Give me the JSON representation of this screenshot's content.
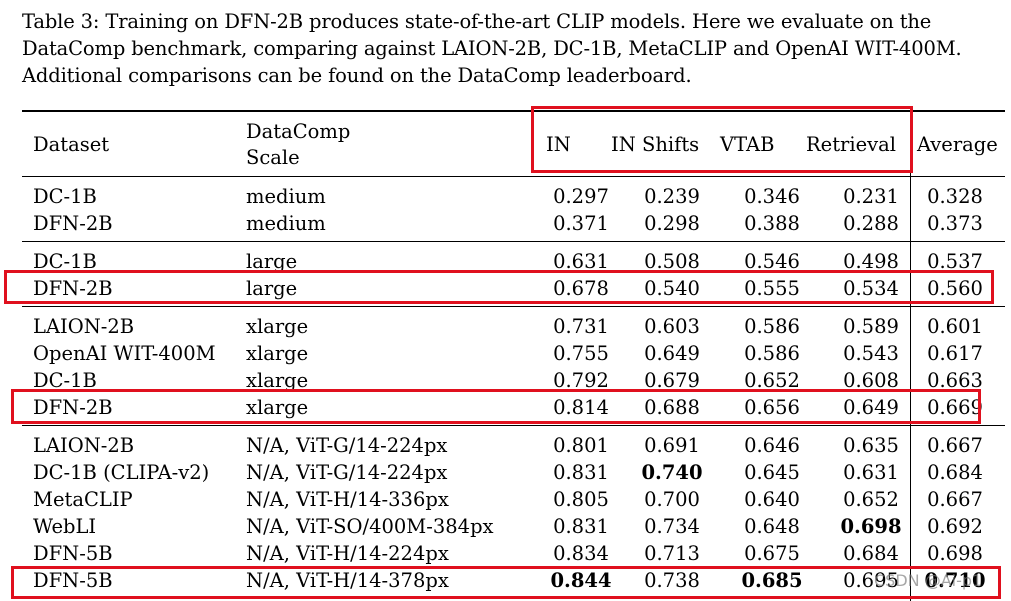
{
  "caption": "Table 3: Training on DFN-2B produces state-of-the-art CLIP models. Here we evaluate on the DataComp benchmark, comparing against LAION-2B, DC-1B, MetaCLIP and OpenAI WIT-400M. Additional comparisons can be found on the DataComp leaderboard.",
  "headers": {
    "dataset": "Dataset",
    "scale_line1": "DataComp",
    "scale_line2": "Scale",
    "in": "IN",
    "in_shifts": "IN Shifts",
    "vtab": "VTAB",
    "retrieval": "Retrieval",
    "average": "Average"
  },
  "rows": [
    {
      "dataset": "DC-1B",
      "scale": "medium",
      "in": "0.297",
      "in_shifts": "0.239",
      "vtab": "0.346",
      "retrieval": "0.231",
      "average": "0.328"
    },
    {
      "dataset": "DFN-2B",
      "scale": "medium",
      "in": "0.371",
      "in_shifts": "0.298",
      "vtab": "0.388",
      "retrieval": "0.288",
      "average": "0.373"
    },
    {
      "dataset": "DC-1B",
      "scale": "large",
      "in": "0.631",
      "in_shifts": "0.508",
      "vtab": "0.546",
      "retrieval": "0.498",
      "average": "0.537"
    },
    {
      "dataset": "DFN-2B",
      "scale": "large",
      "in": "0.678",
      "in_shifts": "0.540",
      "vtab": "0.555",
      "retrieval": "0.534",
      "average": "0.560"
    },
    {
      "dataset": "LAION-2B",
      "scale": "xlarge",
      "in": "0.731",
      "in_shifts": "0.603",
      "vtab": "0.586",
      "retrieval": "0.589",
      "average": "0.601"
    },
    {
      "dataset": "OpenAI WIT-400M",
      "scale": "xlarge",
      "in": "0.755",
      "in_shifts": "0.649",
      "vtab": "0.586",
      "retrieval": "0.543",
      "average": "0.617"
    },
    {
      "dataset": "DC-1B",
      "scale": "xlarge",
      "in": "0.792",
      "in_shifts": "0.679",
      "vtab": "0.652",
      "retrieval": "0.608",
      "average": "0.663"
    },
    {
      "dataset": "DFN-2B",
      "scale": "xlarge",
      "in": "0.814",
      "in_shifts": "0.688",
      "vtab": "0.656",
      "retrieval": "0.649",
      "average": "0.669"
    },
    {
      "dataset": "LAION-2B",
      "scale": "N/A, ViT-G/14-224px",
      "in": "0.801",
      "in_shifts": "0.691",
      "vtab": "0.646",
      "retrieval": "0.635",
      "average": "0.667"
    },
    {
      "dataset": "DC-1B (CLIPA-v2)",
      "scale": "N/A, ViT-G/14-224px",
      "in": "0.831",
      "in_shifts": "0.740",
      "vtab": "0.645",
      "retrieval": "0.631",
      "average": "0.684"
    },
    {
      "dataset": "MetaCLIP",
      "scale": "N/A, ViT-H/14-336px",
      "in": "0.805",
      "in_shifts": "0.700",
      "vtab": "0.640",
      "retrieval": "0.652",
      "average": "0.667"
    },
    {
      "dataset": "WebLI",
      "scale": "N/A, ViT-SO/400M-384px",
      "in": "0.831",
      "in_shifts": "0.734",
      "vtab": "0.648",
      "retrieval": "0.698",
      "average": "0.692"
    },
    {
      "dataset": "DFN-5B",
      "scale": "N/A, ViT-H/14-224px",
      "in": "0.834",
      "in_shifts": "0.713",
      "vtab": "0.675",
      "retrieval": "0.684",
      "average": "0.698"
    },
    {
      "dataset": "DFN-5B",
      "scale": "N/A, ViT-H/14-378px",
      "in": "0.844",
      "in_shifts": "0.738",
      "vtab": "0.685",
      "retrieval": "0.695",
      "average": "0.710"
    }
  ],
  "bold_cells": [
    "9.in_shifts",
    "11.retrieval",
    "13.in",
    "13.vtab",
    "13.average"
  ],
  "highlight_color": "#e0101e",
  "watermark": "CSDN @Ai-p1"
}
